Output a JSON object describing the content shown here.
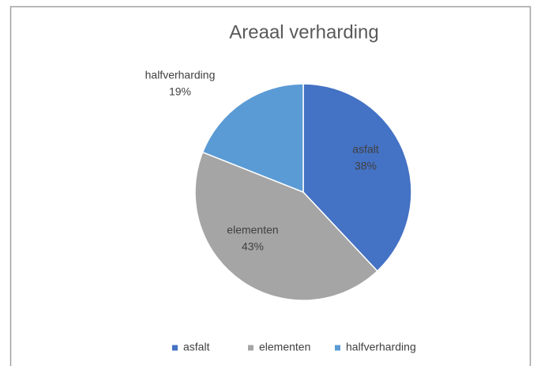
{
  "chart_data": {
    "type": "pie",
    "title": "Areaal verharding",
    "categories": [
      "asfalt",
      "elementen",
      "halfverharding"
    ],
    "values": [
      38,
      43,
      19
    ],
    "value_labels": [
      "38%",
      "43%",
      "19%"
    ],
    "colors": [
      "#4472c4",
      "#a5a5a5",
      "#5b9bd5"
    ],
    "legend": "bottom"
  }
}
